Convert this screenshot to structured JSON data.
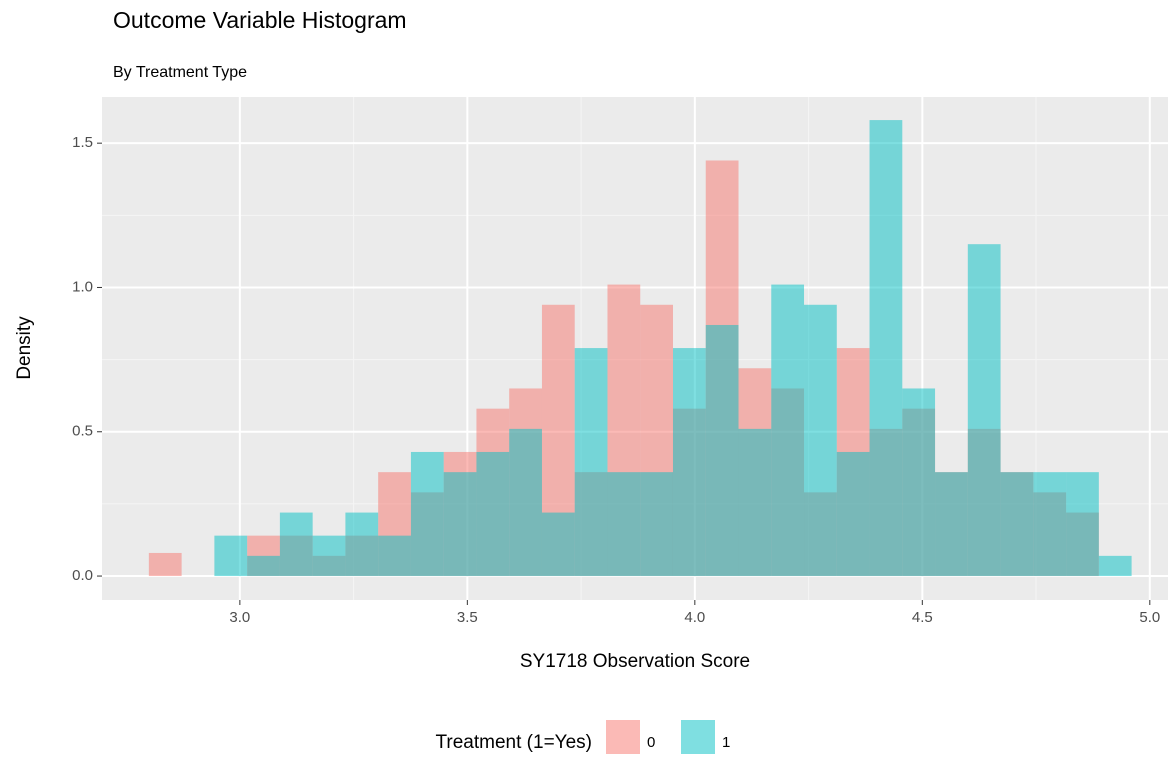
{
  "chart_data": {
    "type": "histogram",
    "title": "Outcome Variable Histogram",
    "subtitle": "By Treatment Type",
    "x_label": "SY1718 Observation Score",
    "y_label": "Density",
    "legend_title": "Treatment (1=Yes)",
    "bins": [
      2.8,
      2.872,
      2.944,
      3.016,
      3.088,
      3.16,
      3.232,
      3.304,
      3.376,
      3.448,
      3.52,
      3.592,
      3.664,
      3.736,
      3.808,
      3.88,
      3.952,
      4.024,
      4.096,
      4.168,
      4.24,
      4.312,
      4.384,
      4.456,
      4.528,
      4.6,
      4.672,
      4.744,
      4.816,
      4.888,
      4.96
    ],
    "series": [
      {
        "name": "0",
        "color": "#F8766D",
        "values": [
          0.08,
          0,
          0,
          0.14,
          0.14,
          0.07,
          0.14,
          0.36,
          0.29,
          0.43,
          0.58,
          0.65,
          0.94,
          0.36,
          1.01,
          0.94,
          0.58,
          1.44,
          0.72,
          0.65,
          0.29,
          0.79,
          0.51,
          0.58,
          0.36,
          0.51,
          0.36,
          0.29,
          0.22,
          0
        ]
      },
      {
        "name": "1",
        "color": "#00BFC4",
        "values": [
          0,
          0,
          0.14,
          0.07,
          0.22,
          0.14,
          0.22,
          0.14,
          0.43,
          0.36,
          0.43,
          0.51,
          0.22,
          0.79,
          0.36,
          0.36,
          0.79,
          0.87,
          0.51,
          1.01,
          0.94,
          0.43,
          1.58,
          0.65,
          0.36,
          1.15,
          0.36,
          0.36,
          0.36,
          0.07
        ]
      }
    ],
    "opacity": 0.5,
    "xlim": [
      2.697,
      5.04
    ],
    "ylim": [
      -0.083,
      1.66
    ],
    "xticks": [
      {
        "value": 3,
        "label": "3.0"
      },
      3.5,
      {
        "value": 4,
        "label": "4.0"
      },
      4.5,
      {
        "value": 5,
        "label": "5.0"
      }
    ],
    "yticks": [
      {
        "value": 0,
        "label": "0.0"
      },
      0.5,
      {
        "value": 1,
        "label": "1.0"
      },
      1.5
    ],
    "grid": true,
    "legend_position": "bottom"
  }
}
